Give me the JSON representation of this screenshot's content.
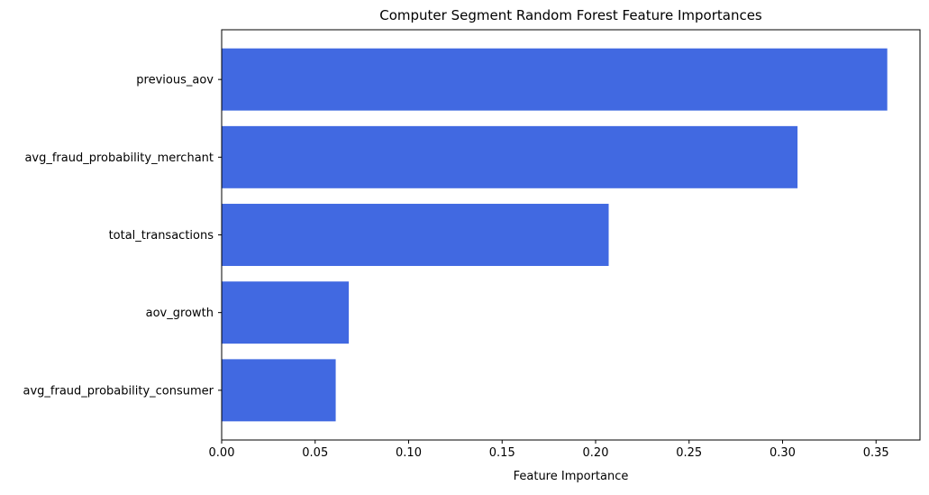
{
  "chart_data": {
    "type": "bar",
    "orientation": "horizontal",
    "title": "Computer Segment Random Forest Feature Importances",
    "xlabel": "Feature Importance",
    "ylabel": "",
    "categories": [
      "previous_aov",
      "avg_fraud_probability_merchant",
      "total_transactions",
      "aov_growth",
      "avg_fraud_probability_consumer"
    ],
    "values": [
      0.356,
      0.308,
      0.207,
      0.068,
      0.061
    ],
    "xlim": [
      0,
      0.3735
    ],
    "xticks": [
      0.0,
      0.05,
      0.1,
      0.15,
      0.2,
      0.25,
      0.3,
      0.35
    ],
    "xtick_labels": [
      "0.00",
      "0.05",
      "0.10",
      "0.15",
      "0.20",
      "0.25",
      "0.30",
      "0.35"
    ],
    "grid": false,
    "legend": "none",
    "bar_color": "#4169e1"
  }
}
